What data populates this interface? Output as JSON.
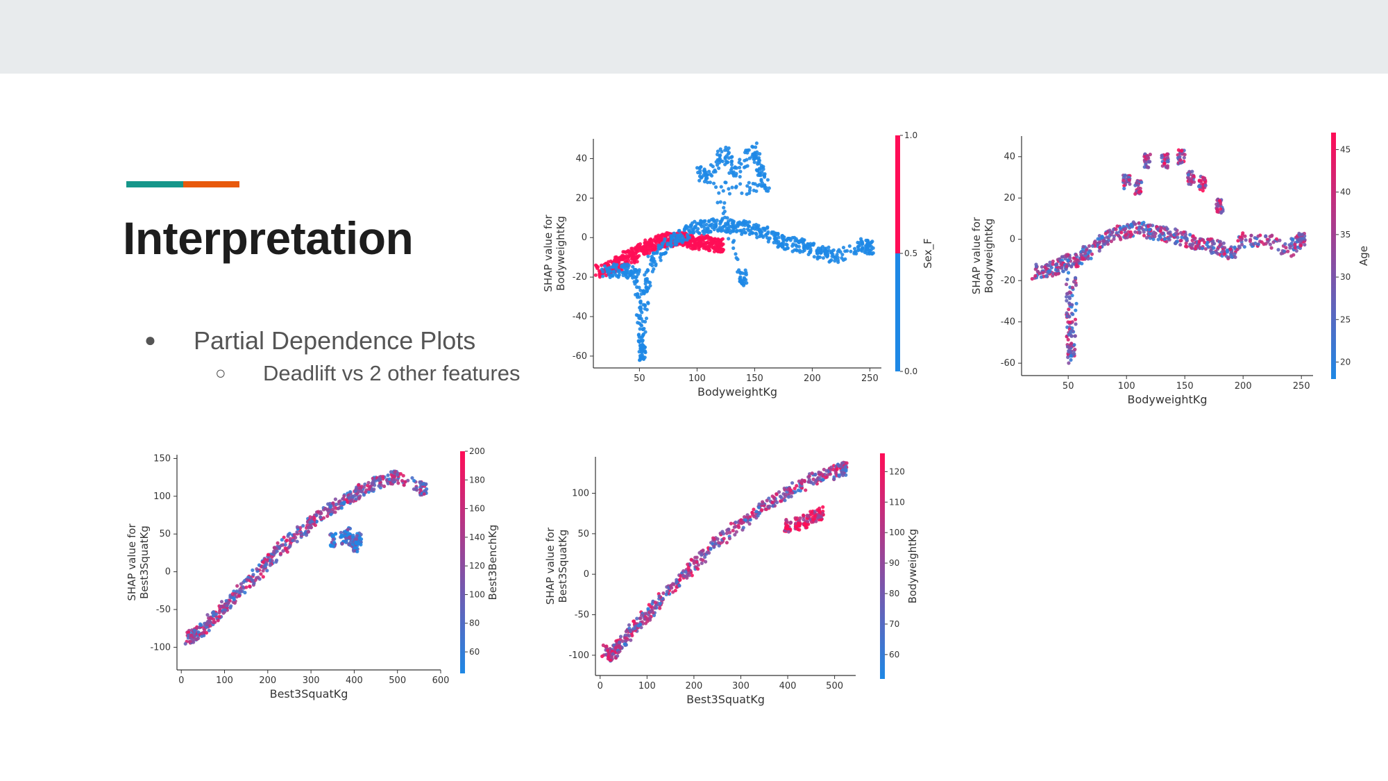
{
  "slide": {
    "title": "Interpretation",
    "accent_colors": [
      "#16968a",
      "#e8590c"
    ],
    "bullets": [
      {
        "text": "Partial Dependence Plots",
        "marker": "●"
      },
      {
        "text": "Deadlift vs 2 other features",
        "marker": "○"
      }
    ]
  },
  "colors": {
    "blue": "#1e88e5",
    "red": "#ff0d57",
    "axis": "#333333",
    "topbar": "#e8ebed"
  },
  "chart_data": [
    {
      "type": "scatter",
      "xlabel": "BodyweightKg",
      "ylabel": "SHAP value for\nBodyweightKg",
      "xlim": [
        10,
        260
      ],
      "ylim": [
        -66,
        50
      ],
      "xticks": [
        50,
        100,
        150,
        200,
        250
      ],
      "yticks": [
        -60,
        -40,
        -20,
        0,
        20,
        40
      ],
      "colorbar": {
        "label": "Sex_F",
        "ticks": [
          "0.0",
          "0.5",
          "1.0"
        ],
        "range": [
          0,
          1
        ],
        "type": "binary"
      },
      "series": [
        {
          "values": [
            [
              14,
              -17
            ],
            [
              20,
              -16
            ],
            [
              25,
              -15
            ],
            [
              30,
              -14
            ],
            [
              35,
              -12
            ],
            [
              40,
              -10
            ],
            [
              45,
              -9
            ],
            [
              50,
              -7
            ],
            [
              55,
              -5
            ],
            [
              60,
              -4
            ],
            [
              65,
              -3
            ],
            [
              70,
              -2
            ],
            [
              75,
              -1
            ],
            [
              80,
              -1
            ],
            [
              85,
              0
            ],
            [
              90,
              -1
            ],
            [
              95,
              -2
            ],
            [
              100,
              -3
            ],
            [
              105,
              -2
            ],
            [
              110,
              -3
            ],
            [
              115,
              -4
            ],
            [
              120,
              -4
            ]
          ],
          "color_value": 1
        },
        {
          "values": [
            [
              20,
              -18
            ],
            [
              30,
              -17
            ],
            [
              40,
              -16
            ],
            [
              48,
              -20
            ],
            [
              50,
              -40
            ],
            [
              52,
              -55
            ],
            [
              53,
              -60
            ],
            [
              55,
              -30
            ],
            [
              60,
              -12
            ],
            [
              70,
              -6
            ],
            [
              80,
              -1
            ],
            [
              90,
              2
            ],
            [
              100,
              5
            ],
            [
              110,
              6
            ],
            [
              120,
              7
            ],
            [
              130,
              6
            ],
            [
              140,
              5
            ],
            [
              150,
              4
            ],
            [
              160,
              2
            ],
            [
              170,
              -1
            ],
            [
              180,
              -3
            ],
            [
              190,
              -4
            ],
            [
              200,
              -6
            ],
            [
              210,
              -8
            ],
            [
              220,
              -10
            ],
            [
              240,
              -4
            ],
            [
              250,
              -5
            ]
          ],
          "color_value": 0
        },
        {
          "values": [
            [
              100,
              33
            ],
            [
              110,
              30
            ],
            [
              123,
              45
            ],
            [
              133,
              32
            ],
            [
              150,
              45
            ],
            [
              155,
              35
            ],
            [
              160,
              25
            ],
            [
              117,
              25
            ],
            [
              140,
              -21
            ]
          ],
          "color_value": 0
        }
      ]
    },
    {
      "type": "scatter",
      "xlabel": "BodyweightKg",
      "ylabel": "SHAP value for\nBodyweightKg",
      "xlim": [
        10,
        260
      ],
      "ylim": [
        -66,
        50
      ],
      "xticks": [
        50,
        100,
        150,
        200,
        250
      ],
      "yticks": [
        -60,
        -40,
        -20,
        0,
        20,
        40
      ],
      "colorbar": {
        "label": "Age",
        "ticks": [
          "20",
          "25",
          "30",
          "35",
          "40",
          "45"
        ],
        "range": [
          18,
          47
        ],
        "type": "continuous"
      },
      "series": [
        {
          "values": [
            [
              20,
              -16
            ],
            [
              30,
              -15
            ],
            [
              40,
              -14
            ],
            [
              45,
              -12
            ],
            [
              50,
              -10
            ],
            [
              51,
              -35
            ],
            [
              52,
              -50
            ],
            [
              53,
              -60
            ],
            [
              55,
              -12
            ],
            [
              60,
              -9
            ],
            [
              70,
              -5
            ],
            [
              80,
              0
            ],
            [
              90,
              2
            ],
            [
              100,
              4
            ],
            [
              110,
              5
            ],
            [
              120,
              4
            ],
            [
              130,
              3
            ],
            [
              140,
              2
            ],
            [
              150,
              0
            ],
            [
              160,
              -2
            ],
            [
              170,
              -3
            ],
            [
              180,
              -4
            ],
            [
              190,
              -7
            ],
            [
              200,
              0
            ],
            [
              220,
              0
            ],
            [
              240,
              -5
            ],
            [
              250,
              0
            ]
          ],
          "color_value": 32
        },
        {
          "values": [
            [
              100,
              28
            ],
            [
              110,
              25
            ],
            [
              118,
              38
            ],
            [
              133,
              38
            ],
            [
              147,
              40
            ],
            [
              155,
              30
            ],
            [
              165,
              27
            ],
            [
              180,
              16
            ]
          ],
          "color_value": 35
        }
      ]
    },
    {
      "type": "scatter",
      "xlabel": "Best3SquatKg",
      "ylabel": "SHAP value for\nBest3SquatKg",
      "xlim": [
        -10,
        600
      ],
      "ylim": [
        -130,
        155
      ],
      "xticks": [
        0,
        100,
        200,
        300,
        400,
        500,
        600
      ],
      "yticks": [
        -100,
        -50,
        0,
        50,
        100,
        150
      ],
      "colorbar": {
        "label": "Best3BenchKg",
        "ticks": [
          "60",
          "80",
          "100",
          "120",
          "140",
          "160",
          "180",
          "200"
        ],
        "range": [
          45,
          200
        ],
        "type": "continuous"
      },
      "series": [
        {
          "values": [
            [
              15,
              -88
            ],
            [
              25,
              -85
            ],
            [
              40,
              -80
            ],
            [
              60,
              -70
            ],
            [
              80,
              -58
            ],
            [
              100,
              -47
            ],
            [
              120,
              -35
            ],
            [
              150,
              -18
            ],
            [
              180,
              -2
            ],
            [
              200,
              12
            ],
            [
              220,
              25
            ],
            [
              250,
              40
            ],
            [
              280,
              55
            ],
            [
              300,
              65
            ],
            [
              320,
              75
            ],
            [
              350,
              85
            ],
            [
              380,
              95
            ],
            [
              400,
              103
            ],
            [
              420,
              110
            ],
            [
              450,
              118
            ],
            [
              480,
              125
            ],
            [
              500,
              125
            ],
            [
              560,
              110
            ]
          ],
          "color_value": 120
        },
        {
          "values": [
            [
              375,
              45
            ],
            [
              385,
              50
            ],
            [
              395,
              40
            ],
            [
              405,
              35
            ],
            [
              410,
              44
            ],
            [
              350,
              42
            ]
          ],
          "color_value": 60
        }
      ]
    },
    {
      "type": "scatter",
      "xlabel": "Best3SquatKg",
      "ylabel": "SHAP value for\nBest3SquatKg",
      "xlim": [
        -10,
        545
      ],
      "ylim": [
        -125,
        145
      ],
      "xticks": [
        0,
        100,
        200,
        300,
        400,
        500
      ],
      "yticks": [
        -100,
        -50,
        0,
        50,
        100
      ],
      "colorbar": {
        "label": "BodyweightKg",
        "ticks": [
          "60",
          "70",
          "80",
          "90",
          "100",
          "110",
          "120"
        ],
        "range": [
          52,
          126
        ],
        "type": "continuous"
      },
      "series": [
        {
          "values": [
            [
              10,
              -95
            ],
            [
              20,
              -100
            ],
            [
              30,
              -96
            ],
            [
              40,
              -88
            ],
            [
              60,
              -75
            ],
            [
              80,
              -62
            ],
            [
              100,
              -50
            ],
            [
              120,
              -38
            ],
            [
              150,
              -20
            ],
            [
              180,
              -2
            ],
            [
              200,
              12
            ],
            [
              230,
              30
            ],
            [
              260,
              45
            ],
            [
              300,
              62
            ],
            [
              330,
              75
            ],
            [
              360,
              87
            ],
            [
              390,
              98
            ],
            [
              420,
              108
            ],
            [
              450,
              116
            ],
            [
              480,
              122
            ],
            [
              510,
              128
            ],
            [
              520,
              130
            ]
          ],
          "color_value": 90
        },
        {
          "values": [
            [
              400,
              60
            ],
            [
              420,
              62
            ],
            [
              440,
              65
            ],
            [
              455,
              70
            ],
            [
              470,
              75
            ]
          ],
          "color_value": 115
        }
      ]
    }
  ]
}
